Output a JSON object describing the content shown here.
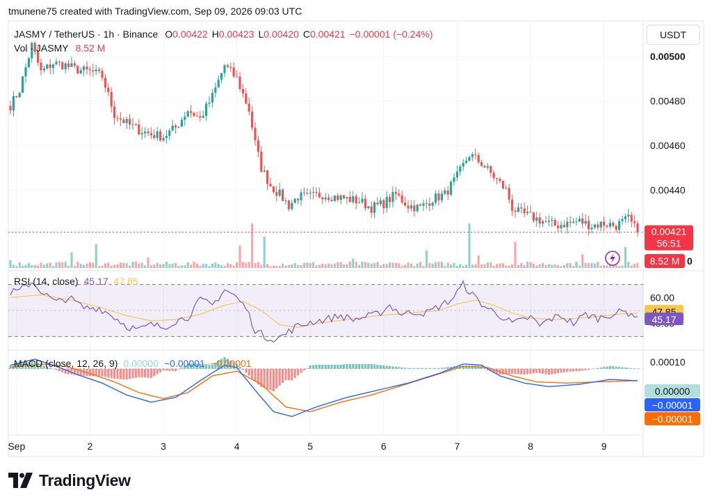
{
  "header": {
    "credit": "tmunene75 created with TradingView.com, Sep 09, 2026 09:03 UTC"
  },
  "legend": {
    "symbol": "JASMY / TetherUS · 1h · Binance",
    "o_label": "O",
    "o": "0.00422",
    "h_label": "H",
    "h": "0.00423",
    "l_label": "L",
    "l": "0.00420",
    "c_label": "C",
    "c": "0.00421",
    "change": "−0.00001 (−0.24%)",
    "vol_label": "Vol · JASMY",
    "vol": "8.52 M"
  },
  "currency_button": "USDT",
  "brand": {
    "name": "TradingView"
  },
  "colors": {
    "up": "#26a69a",
    "down": "#ef5350",
    "rsi": "#7e57c2",
    "rsi_ma": "#f7c84a",
    "macd": "#2962ff",
    "signal": "#ff6d00",
    "price_line": "#f23645"
  },
  "chart_data": [
    {
      "type": "candlestick",
      "title": "JASMY / TetherUS · 1h · Binance",
      "interval": "1h",
      "ylim": [
        0.00404,
        0.00516
      ],
      "y_ticks": [
        "0.00500",
        "0.00480",
        "0.00460",
        "0.00440"
      ],
      "y_tick_values": [
        0.005,
        0.0048,
        0.0046,
        0.0044
      ],
      "x_ticks": [
        {
          "label": "Sep",
          "index": 2
        },
        {
          "label": "2",
          "index": 26
        },
        {
          "label": "3",
          "index": 50
        },
        {
          "label": "4",
          "index": 74
        },
        {
          "label": "5",
          "index": 98
        },
        {
          "label": "6",
          "index": 122
        },
        {
          "label": "7",
          "index": 146
        },
        {
          "label": "8",
          "index": 170
        },
        {
          "label": "9",
          "index": 194
        }
      ],
      "last_price": {
        "value": 0.00421,
        "label": "0.00421",
        "countdown": "56:51"
      },
      "close_path": [
        [
          0,
          0.00478
        ],
        [
          3,
          0.00485
        ],
        [
          7,
          0.00505
        ],
        [
          10,
          0.00493
        ],
        [
          14,
          0.00497
        ],
        [
          18,
          0.00496
        ],
        [
          22,
          0.00494
        ],
        [
          27,
          0.00493
        ],
        [
          30,
          0.00491
        ],
        [
          34,
          0.00474
        ],
        [
          38,
          0.0047
        ],
        [
          42,
          0.00467
        ],
        [
          46,
          0.00465
        ],
        [
          50,
          0.00464
        ],
        [
          54,
          0.00468
        ],
        [
          58,
          0.00476
        ],
        [
          62,
          0.00472
        ],
        [
          66,
          0.00482
        ],
        [
          70,
          0.00496
        ],
        [
          74,
          0.0049
        ],
        [
          78,
          0.00476
        ],
        [
          80,
          0.00461
        ],
        [
          82,
          0.0045
        ],
        [
          85,
          0.00442
        ],
        [
          88,
          0.00438
        ],
        [
          91,
          0.00433
        ],
        [
          94,
          0.00437
        ],
        [
          98,
          0.00437
        ],
        [
          102,
          0.00438
        ],
        [
          106,
          0.00437
        ],
        [
          110,
          0.00436
        ],
        [
          114,
          0.00435
        ],
        [
          118,
          0.00432
        ],
        [
          122,
          0.00434
        ],
        [
          126,
          0.00438
        ],
        [
          130,
          0.00433
        ],
        [
          134,
          0.00432
        ],
        [
          138,
          0.00436
        ],
        [
          142,
          0.00438
        ],
        [
          146,
          0.00446
        ],
        [
          150,
          0.00456
        ],
        [
          154,
          0.00452
        ],
        [
          158,
          0.00446
        ],
        [
          162,
          0.0044
        ],
        [
          164,
          0.00432
        ],
        [
          166,
          0.0043
        ],
        [
          170,
          0.00428
        ],
        [
          174,
          0.00426
        ],
        [
          178,
          0.00424
        ],
        [
          182,
          0.00425
        ],
        [
          186,
          0.00426
        ],
        [
          190,
          0.00424
        ],
        [
          194,
          0.00425
        ],
        [
          198,
          0.00424
        ],
        [
          202,
          0.00427
        ],
        [
          205,
          0.00421
        ]
      ],
      "volume_label": "8.52 M",
      "volume_axis_stub": "0",
      "volume_peaks": [
        [
          0,
          1.5
        ],
        [
          20,
          3.0
        ],
        [
          28,
          4.6
        ],
        [
          45,
          2.0
        ],
        [
          75,
          4.3
        ],
        [
          79,
          8.5
        ],
        [
          83,
          6.0
        ],
        [
          112,
          1.8
        ],
        [
          136,
          3.4
        ],
        [
          150,
          8.5
        ],
        [
          153,
          2.4
        ],
        [
          165,
          5.0
        ],
        [
          187,
          2.6
        ],
        [
          201,
          4.0
        ],
        [
          206,
          8.52
        ]
      ]
    },
    {
      "type": "line",
      "title": "RSI (14, close)",
      "series": [
        {
          "name": "RSI",
          "last": "45.17"
        },
        {
          "name": "RSI-based MA",
          "last": "47.85"
        }
      ],
      "ylim": [
        20,
        80
      ],
      "bands": [
        30,
        50,
        70
      ],
      "y_ticks": [
        "60.00",
        "40.00"
      ],
      "y_tick_values": [
        60,
        40
      ],
      "rsi_path": [
        [
          0,
          64
        ],
        [
          3,
          65
        ],
        [
          7,
          72
        ],
        [
          11,
          63
        ],
        [
          15,
          56
        ],
        [
          19,
          60
        ],
        [
          24,
          52
        ],
        [
          29,
          52
        ],
        [
          34,
          45
        ],
        [
          38,
          38
        ],
        [
          42,
          35
        ],
        [
          46,
          39
        ],
        [
          50,
          37
        ],
        [
          54,
          42
        ],
        [
          58,
          45
        ],
        [
          62,
          58
        ],
        [
          66,
          54
        ],
        [
          70,
          66
        ],
        [
          73,
          62
        ],
        [
          77,
          52
        ],
        [
          80,
          35
        ],
        [
          83,
          30
        ],
        [
          87,
          28
        ],
        [
          90,
          32
        ],
        [
          93,
          37
        ],
        [
          98,
          41
        ],
        [
          103,
          43
        ],
        [
          108,
          46
        ],
        [
          112,
          43
        ],
        [
          116,
          45
        ],
        [
          120,
          47
        ],
        [
          124,
          54
        ],
        [
          128,
          47
        ],
        [
          132,
          49
        ],
        [
          136,
          48
        ],
        [
          140,
          53
        ],
        [
          144,
          58
        ],
        [
          146,
          64
        ],
        [
          148,
          70
        ],
        [
          151,
          62
        ],
        [
          155,
          53
        ],
        [
          158,
          49
        ],
        [
          161,
          45
        ],
        [
          164,
          40
        ],
        [
          167,
          42
        ],
        [
          170,
          45
        ],
        [
          173,
          38
        ],
        [
          176,
          43
        ],
        [
          180,
          46
        ],
        [
          184,
          40
        ],
        [
          188,
          47
        ],
        [
          192,
          44
        ],
        [
          196,
          47
        ],
        [
          200,
          49
        ],
        [
          203,
          48
        ],
        [
          205,
          45.17
        ]
      ],
      "ma_path": [
        [
          0,
          60
        ],
        [
          10,
          62
        ],
        [
          20,
          58
        ],
        [
          30,
          52
        ],
        [
          38,
          46
        ],
        [
          46,
          42
        ],
        [
          54,
          43
        ],
        [
          62,
          47
        ],
        [
          70,
          54
        ],
        [
          76,
          57
        ],
        [
          82,
          50
        ],
        [
          88,
          39
        ],
        [
          94,
          37
        ],
        [
          100,
          40
        ],
        [
          110,
          43
        ],
        [
          120,
          46
        ],
        [
          130,
          48
        ],
        [
          140,
          50
        ],
        [
          146,
          55
        ],
        [
          152,
          58
        ],
        [
          158,
          54
        ],
        [
          164,
          48
        ],
        [
          170,
          44
        ],
        [
          178,
          43
        ],
        [
          186,
          44
        ],
        [
          194,
          46
        ],
        [
          200,
          47.5
        ],
        [
          205,
          47.85
        ]
      ]
    },
    {
      "type": "histogram+line",
      "title": "MACD (close, 12, 26, 9)",
      "series": [
        {
          "name": "Histogram",
          "last": "0.00000"
        },
        {
          "name": "MACD",
          "last": "−0.00001"
        },
        {
          "name": "Signal",
          "last": "−0.00001"
        }
      ],
      "ylim": [
        -5.5e-05,
        1.5e-05
      ],
      "y_ticks": [
        "0.00010"
      ],
      "y_tick_values": [
        0.0001
      ],
      "macd_path": [
        [
          0,
          3e-06
        ],
        [
          8,
          8e-06
        ],
        [
          14,
          3e-06
        ],
        [
          22,
          -5e-06
        ],
        [
          30,
          -1.2e-05
        ],
        [
          38,
          -2.2e-05
        ],
        [
          46,
          -2.8e-05
        ],
        [
          54,
          -2.4e-05
        ],
        [
          62,
          -1e-05
        ],
        [
          70,
          3e-06
        ],
        [
          74,
          1e-06
        ],
        [
          80,
          -1.8e-05
        ],
        [
          86,
          -3.6e-05
        ],
        [
          92,
          -4e-05
        ],
        [
          100,
          -3.2e-05
        ],
        [
          110,
          -2.4e-05
        ],
        [
          120,
          -1.8e-05
        ],
        [
          130,
          -1.2e-05
        ],
        [
          140,
          -4e-06
        ],
        [
          148,
          4e-06
        ],
        [
          154,
          3e-06
        ],
        [
          160,
          -6e-06
        ],
        [
          168,
          -1.2e-05
        ],
        [
          176,
          -1.5e-05
        ],
        [
          186,
          -1.3e-05
        ],
        [
          196,
          -9e-06
        ],
        [
          205,
          -1e-05
        ]
      ],
      "signal_path": [
        [
          0,
          1e-06
        ],
        [
          10,
          4e-06
        ],
        [
          18,
          2e-06
        ],
        [
          26,
          -4e-06
        ],
        [
          34,
          -1.1e-05
        ],
        [
          42,
          -2e-05
        ],
        [
          50,
          -2.5e-05
        ],
        [
          58,
          -2e-05
        ],
        [
          66,
          -6e-06
        ],
        [
          74,
          -2e-06
        ],
        [
          82,
          -1.3e-05
        ],
        [
          90,
          -3.2e-05
        ],
        [
          98,
          -3.6e-05
        ],
        [
          108,
          -2.8e-05
        ],
        [
          118,
          -2.2e-05
        ],
        [
          128,
          -1.4e-05
        ],
        [
          138,
          -6e-06
        ],
        [
          148,
          2e-06
        ],
        [
          156,
          1e-06
        ],
        [
          164,
          -6e-06
        ],
        [
          172,
          -1.1e-05
        ],
        [
          182,
          -1.2e-05
        ],
        [
          192,
          -1.1e-05
        ],
        [
          205,
          -1e-05
        ]
      ]
    }
  ]
}
